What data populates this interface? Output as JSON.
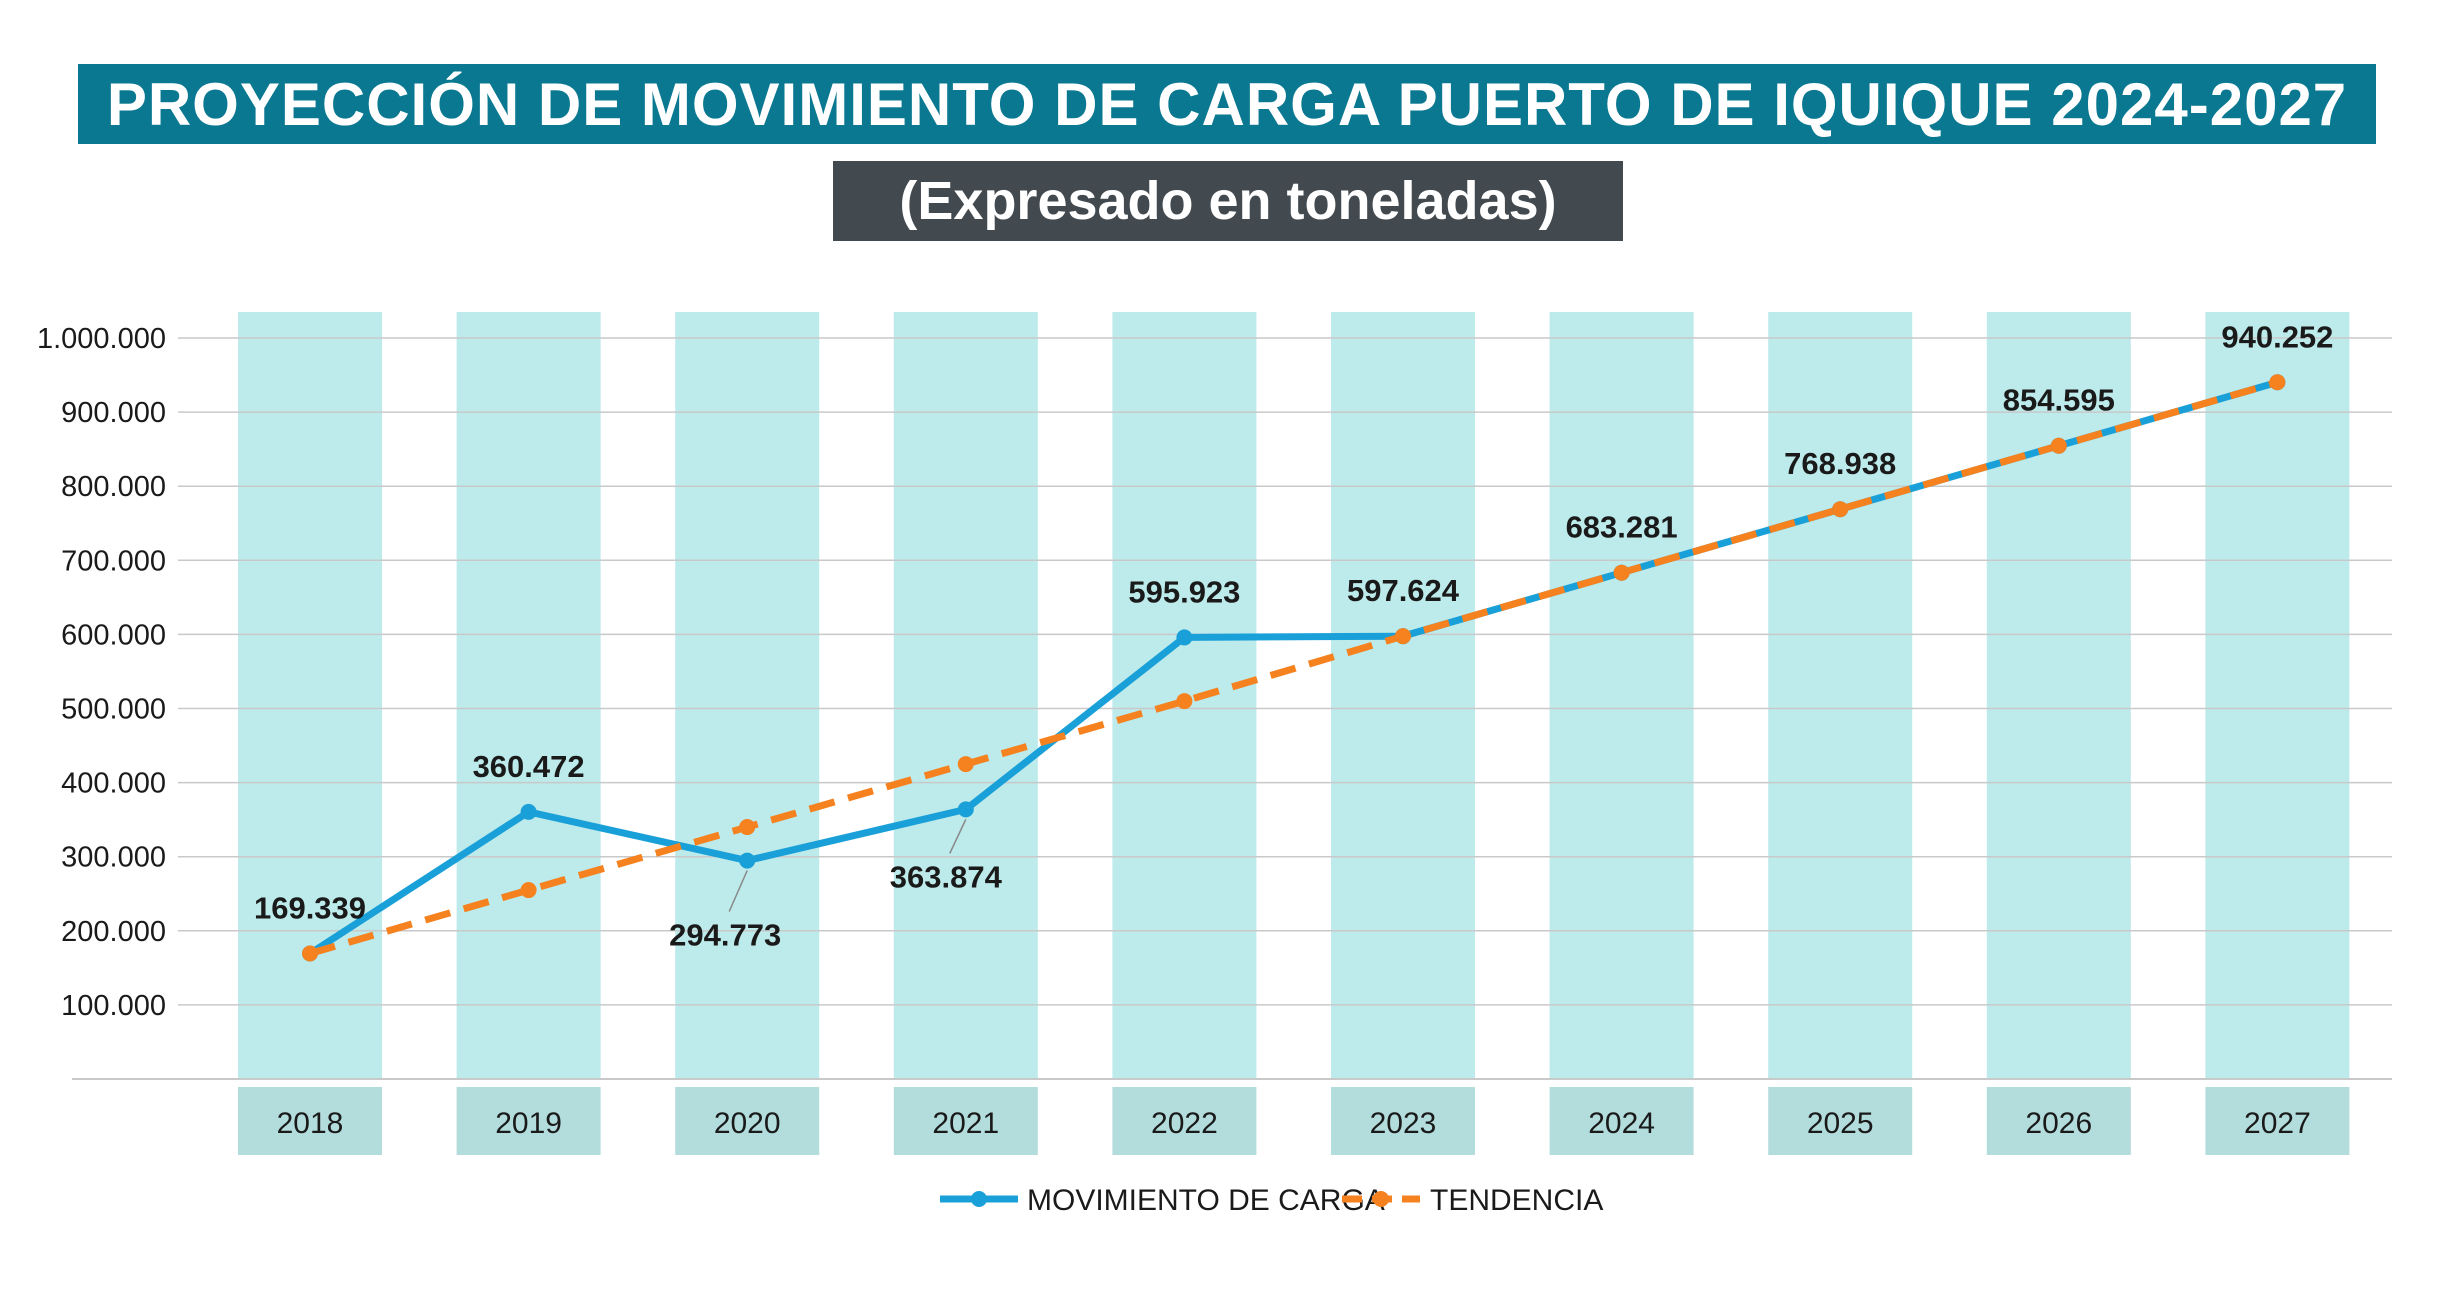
{
  "title": "PROYECCIÓN DE MOVIMIENTO DE CARGA PUERTO DE IQUIQUE 2024-2027",
  "subtitle": "(Expresado en toneladas)",
  "colors": {
    "title_bg": "#0a7891",
    "subtitle_bg": "#434a4f",
    "column_bg": "#bdeaeb",
    "category_bg": "#b3dcdd",
    "series_carga": "#1aa0d8",
    "series_tendencia": "#f5821f"
  },
  "chart_data": {
    "type": "line",
    "title": "PROYECCIÓN DE MOVIMIENTO DE CARGA PUERTO DE IQUIQUE 2024-2027",
    "subtitle": "(Expresado en toneladas)",
    "categories": [
      "2018",
      "2019",
      "2020",
      "2021",
      "2022",
      "2023",
      "2024",
      "2025",
      "2026",
      "2027"
    ],
    "ylim": [
      0,
      1000000
    ],
    "yticks": [
      100000,
      200000,
      300000,
      400000,
      500000,
      600000,
      700000,
      800000,
      900000,
      1000000
    ],
    "ytick_labels": [
      "100.000",
      "200.000",
      "300.000",
      "400.000",
      "500.000",
      "600.000",
      "700.000",
      "800.000",
      "900.000",
      "1.000.000"
    ],
    "grid": true,
    "legend_position": "bottom-center",
    "series": [
      {
        "name": "MOVIMIENTO DE CARGA",
        "style": "solid",
        "values": [
          169339,
          360472,
          294773,
          363874,
          595923,
          597624,
          683281,
          768938,
          854595,
          940252
        ],
        "labels": [
          "169.339",
          "360.472",
          "294.773",
          "363.874",
          "595.923",
          "597.624",
          "683.281",
          "768.938",
          "854.595",
          "940.252"
        ]
      },
      {
        "name": "TENDENCIA",
        "style": "dashed",
        "values": [
          169339,
          255000,
          340000,
          425000,
          510000,
          597624,
          683281,
          768938,
          854595,
          940252
        ]
      }
    ]
  }
}
